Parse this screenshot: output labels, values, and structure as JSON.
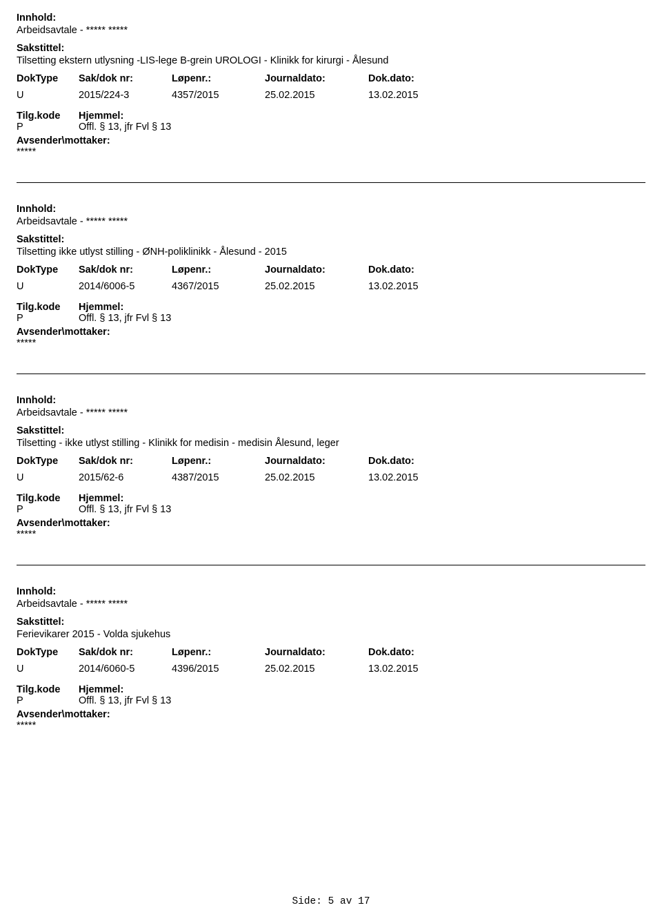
{
  "labels": {
    "innhold": "Innhold:",
    "sakstittel": "Sakstittel:",
    "doktype": "DokType",
    "sakdok": "Sak/dok nr:",
    "lopenr": "Løpenr.:",
    "journaldato": "Journaldato:",
    "dokdato": "Dok.dato:",
    "tilgkode": "Tilg.kode",
    "hjemmel": "Hjemmel:",
    "avsender": "Avsender\\mottaker:"
  },
  "entries": [
    {
      "innhold": "Arbeidsavtale - ***** *****",
      "sakstittel": "Tilsetting ekstern utlysning -LIS-lege B-grein UROLOGI - Klinikk for kirurgi - Ålesund",
      "doktype": "U",
      "sakdok": "2015/224-3",
      "lopenr": "4357/2015",
      "journaldato": "25.02.2015",
      "dokdato": "13.02.2015",
      "tilgkode": "P",
      "hjemmel": "Offl. § 13, jfr Fvl § 13",
      "avsender": "*****"
    },
    {
      "innhold": "Arbeidsavtale - ***** *****",
      "sakstittel": "Tilsetting ikke utlyst stilling - ØNH-poliklinikk - Ålesund - 2015",
      "doktype": "U",
      "sakdok": "2014/6006-5",
      "lopenr": "4367/2015",
      "journaldato": "25.02.2015",
      "dokdato": "13.02.2015",
      "tilgkode": "P",
      "hjemmel": "Offl. § 13, jfr Fvl § 13",
      "avsender": "*****"
    },
    {
      "innhold": "Arbeidsavtale - ***** *****",
      "sakstittel": "Tilsetting - ikke utlyst stilling - Klinikk for medisin - medisin Ålesund, leger",
      "doktype": "U",
      "sakdok": "2015/62-6",
      "lopenr": "4387/2015",
      "journaldato": "25.02.2015",
      "dokdato": "13.02.2015",
      "tilgkode": "P",
      "hjemmel": "Offl. § 13, jfr Fvl § 13",
      "avsender": "*****"
    },
    {
      "innhold": "Arbeidsavtale - ***** *****",
      "sakstittel": "Ferievikarer 2015 - Volda sjukehus",
      "doktype": "U",
      "sakdok": "2014/6060-5",
      "lopenr": "4396/2015",
      "journaldato": "25.02.2015",
      "dokdato": "13.02.2015",
      "tilgkode": "P",
      "hjemmel": "Offl. § 13, jfr Fvl § 13",
      "avsender": "*****"
    }
  ],
  "footer": {
    "text": "Side: 5 av 17"
  },
  "style": {
    "text_color": "#000000",
    "background": "#ffffff",
    "divider_color": "#000000",
    "font_family": "Verdana, Geneva, sans-serif",
    "font_size_pt": 11,
    "footer_font_family": "Courier New, monospace"
  }
}
